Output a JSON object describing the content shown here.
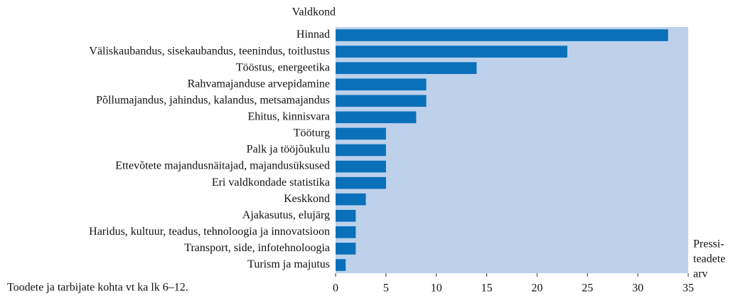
{
  "chart_data": {
    "type": "bar",
    "orientation": "horizontal",
    "y_label": "Valdkond",
    "x_label_lines": [
      "Pressi-",
      "teadete",
      "arv"
    ],
    "note": "Toodete ja tarbijate kohta vt ka lk 6–12.",
    "categories": [
      "Hinnad",
      "Väliskaubandus, sisekaubandus, teenindus, toitlustus",
      "Tööstus, energeetika",
      "Rahvamajanduse arvepidamine",
      "Põllumajandus, jahindus, kalandus, metsamajandus",
      "Ehitus, kinnisvara",
      "Tööturg",
      "Palk ja tööjõukulu",
      "Ettevõtete majandusnäitajad, majandusüksused",
      "Eri valdkondade statistika",
      "Keskkond",
      "Ajakasutus, elujärg",
      "Haridus, kultuur, teadus, tehnoloogia ja innovatsioon",
      "Transport, side, infotehnoloogia",
      "Turism ja majutus"
    ],
    "values": [
      33,
      23,
      14,
      9,
      9,
      8,
      5,
      5,
      5,
      5,
      3,
      2,
      2,
      2,
      1
    ],
    "color": "#0a70ba",
    "background": "#bdd1eb",
    "xlim": [
      0,
      35
    ],
    "xticks": [
      0,
      5,
      10,
      15,
      20,
      25,
      30,
      35
    ],
    "grid": false
  }
}
